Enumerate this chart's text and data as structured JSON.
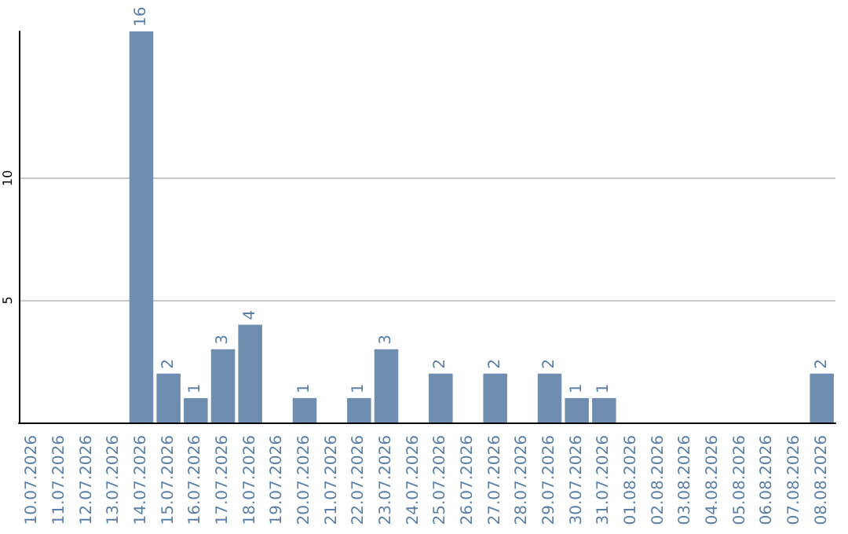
{
  "chart_data": {
    "type": "bar",
    "categories": [
      "10.07.2026",
      "11.07.2026",
      "12.07.2026",
      "13.07.2026",
      "14.07.2026",
      "15.07.2026",
      "16.07.2026",
      "17.07.2026",
      "18.07.2026",
      "19.07.2026",
      "20.07.2026",
      "21.07.2026",
      "22.07.2026",
      "23.07.2026",
      "24.07.2026",
      "25.07.2026",
      "26.07.2026",
      "27.07.2026",
      "28.07.2026",
      "29.07.2026",
      "30.07.2026",
      "31.07.2026",
      "01.08.2026",
      "02.08.2026",
      "03.08.2026",
      "04.08.2026",
      "05.08.2026",
      "06.08.2026",
      "07.08.2026",
      "08.08.2026"
    ],
    "values": [
      0,
      0,
      0,
      0,
      16,
      2,
      1,
      3,
      4,
      0,
      1,
      0,
      1,
      3,
      0,
      2,
      0,
      2,
      0,
      2,
      1,
      1,
      0,
      0,
      0,
      0,
      0,
      0,
      0,
      2
    ],
    "color": "#6e8daf",
    "value_labels": [
      null,
      null,
      null,
      null,
      "16",
      "2",
      "1",
      "3",
      "4",
      null,
      "1",
      null,
      "1",
      "3",
      null,
      "2",
      null,
      "2",
      null,
      "2",
      "1",
      "1",
      null,
      null,
      null,
      null,
      null,
      null,
      null,
      "2"
    ],
    "ylim": [
      0,
      16
    ],
    "yticks": [
      5,
      10
    ],
    "grid": "y"
  }
}
